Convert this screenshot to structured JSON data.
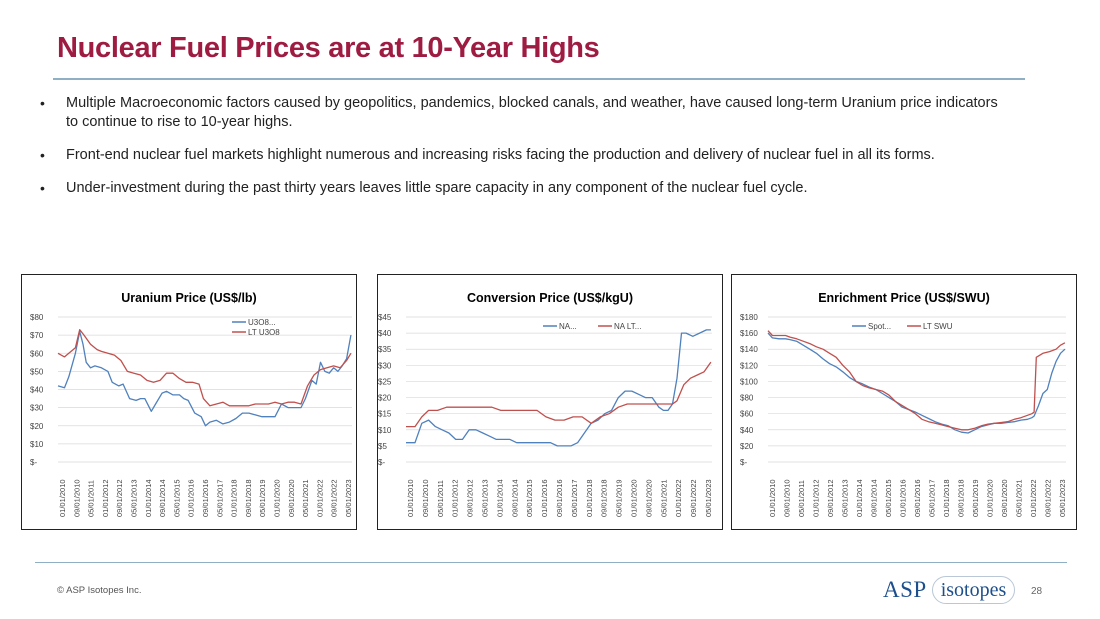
{
  "slide": {
    "title": "Nuclear Fuel Prices are at 10-Year Highs",
    "bullets": [
      "Multiple Macroeconomic factors caused by geopolitics, pandemics, blocked canals, and weather, have caused long-term Uranium price indicators to continue to rise to 10-year highs.",
      "Front-end nuclear fuel markets highlight numerous and increasing risks facing the production and delivery of nuclear fuel in all its forms.",
      "Under-investment during the past thirty years leaves little spare capacity in any component of the nuclear fuel cycle."
    ],
    "footer": {
      "copyright": "© ASP Isotopes Inc.",
      "logo_main": "ASP",
      "logo_sub": "isotopes",
      "page_number": "28"
    }
  },
  "colors": {
    "title": "#9e1b42",
    "series_blue": "#4f81bd",
    "series_red": "#c0504d"
  },
  "chart_data": [
    {
      "type": "line",
      "title": "Uranium Price (US$/lb)",
      "xlabel": "",
      "ylabel": "",
      "ylim": [
        0,
        80
      ],
      "yticks": [
        "$-",
        "$10",
        "$20",
        "$30",
        "$40",
        "$50",
        "$60",
        "$70",
        "$80"
      ],
      "xlim": [
        2010.0,
        2023.55
      ],
      "xticks": [
        "01/01/2010",
        "09/01/2010",
        "05/01/2011",
        "01/01/2012",
        "09/01/2012",
        "05/01/2013",
        "01/01/2014",
        "09/01/2014",
        "05/01/2015",
        "01/01/2016",
        "09/01/2016",
        "05/01/2017",
        "01/01/2018",
        "09/01/2018",
        "05/01/2019",
        "01/01/2020",
        "09/01/2020",
        "05/01/2021",
        "01/01/2022",
        "09/01/2022",
        "05/01/2023"
      ],
      "legend": "top-right",
      "series": [
        {
          "name": "U3O8...",
          "color": "#4f81bd",
          "x": [
            2010.0,
            2010.3,
            2010.5,
            2010.8,
            2011.0,
            2011.15,
            2011.3,
            2011.5,
            2011.7,
            2012.0,
            2012.3,
            2012.5,
            2012.8,
            2013.0,
            2013.3,
            2013.6,
            2013.8,
            2014.0,
            2014.3,
            2014.5,
            2014.8,
            2015.0,
            2015.3,
            2015.6,
            2015.8,
            2016.0,
            2016.3,
            2016.6,
            2016.8,
            2017.0,
            2017.3,
            2017.6,
            2017.9,
            2018.2,
            2018.5,
            2018.8,
            2019.1,
            2019.4,
            2019.7,
            2020.0,
            2020.3,
            2020.6,
            2020.9,
            2021.2,
            2021.4,
            2021.7,
            2021.9,
            2022.1,
            2022.3,
            2022.5,
            2022.7,
            2022.9,
            2023.1,
            2023.3,
            2023.5
          ],
          "y": [
            42,
            41,
            47,
            60,
            72,
            65,
            55,
            52,
            53,
            52,
            50,
            44,
            42,
            43,
            35,
            34,
            35,
            35,
            28,
            32,
            38,
            39,
            37,
            37,
            35,
            34,
            27,
            25,
            20,
            22,
            23,
            21,
            22,
            24,
            27,
            27,
            26,
            25,
            25,
            25,
            32,
            30,
            30,
            30,
            35,
            45,
            43,
            55,
            50,
            49,
            52,
            50,
            53,
            57,
            70
          ]
        },
        {
          "name": "LT U3O8",
          "color": "#c0504d",
          "x": [
            2010.0,
            2010.3,
            2010.5,
            2010.8,
            2011.0,
            2011.2,
            2011.5,
            2011.8,
            2012.0,
            2012.3,
            2012.6,
            2012.9,
            2013.2,
            2013.5,
            2013.8,
            2014.1,
            2014.4,
            2014.7,
            2015.0,
            2015.3,
            2015.6,
            2015.9,
            2016.2,
            2016.5,
            2016.7,
            2017.0,
            2017.3,
            2017.6,
            2017.9,
            2018.2,
            2018.5,
            2018.8,
            2019.1,
            2019.4,
            2019.7,
            2020.0,
            2020.3,
            2020.6,
            2020.9,
            2021.2,
            2021.5,
            2021.8,
            2022.1,
            2022.4,
            2022.7,
            2023.0,
            2023.3,
            2023.5
          ],
          "y": [
            60,
            58,
            60,
            63,
            73,
            70,
            65,
            62,
            61,
            60,
            59,
            56,
            50,
            49,
            48,
            45,
            44,
            45,
            49,
            49,
            46,
            44,
            44,
            43,
            35,
            31,
            32,
            33,
            31,
            31,
            31,
            31,
            32,
            32,
            32,
            33,
            32,
            33,
            33,
            32,
            42,
            48,
            51,
            52,
            53,
            52,
            56,
            60
          ]
        }
      ]
    },
    {
      "type": "line",
      "title": "Conversion Price (US$/kgU)",
      "xlabel": "",
      "ylabel": "",
      "ylim": [
        0,
        45
      ],
      "yticks": [
        "$-",
        "$5",
        "$10",
        "$15",
        "$20",
        "$25",
        "$30",
        "$35",
        "$40",
        "$45"
      ],
      "xlim": [
        2010.0,
        2023.55
      ],
      "xticks": [
        "01/01/2010",
        "09/01/2010",
        "05/01/2011",
        "01/01/2012",
        "09/01/2012",
        "05/01/2013",
        "01/01/2014",
        "09/01/2014",
        "05/01/2015",
        "01/01/2016",
        "09/01/2016",
        "05/01/2017",
        "01/01/2018",
        "09/01/2018",
        "05/01/2019",
        "01/01/2020",
        "09/01/2020",
        "05/01/2021",
        "01/01/2022",
        "09/01/2022",
        "05/01/2023"
      ],
      "legend": "top",
      "series": [
        {
          "name": "NA...",
          "color": "#4f81bd",
          "x": [
            2010.0,
            2010.4,
            2010.7,
            2011.0,
            2011.3,
            2011.6,
            2011.9,
            2012.2,
            2012.5,
            2012.8,
            2013.1,
            2013.4,
            2013.7,
            2014.0,
            2014.3,
            2014.6,
            2014.9,
            2015.2,
            2015.5,
            2015.8,
            2016.1,
            2016.4,
            2016.7,
            2017.0,
            2017.3,
            2017.6,
            2017.9,
            2018.2,
            2018.5,
            2018.8,
            2019.1,
            2019.4,
            2019.7,
            2020.0,
            2020.3,
            2020.6,
            2020.9,
            2021.2,
            2021.4,
            2021.6,
            2021.8,
            2022.0,
            2022.2,
            2022.4,
            2022.7,
            2023.0,
            2023.3,
            2023.5
          ],
          "y": [
            6,
            6,
            12,
            13,
            11,
            10,
            9,
            7,
            7,
            10,
            10,
            9,
            8,
            7,
            7,
            7,
            6,
            6,
            6,
            6,
            6,
            6,
            5,
            5,
            5,
            6,
            9,
            12,
            13,
            15,
            16,
            20,
            22,
            22,
            21,
            20,
            20,
            17,
            16,
            16,
            18,
            26,
            40,
            40,
            39,
            40,
            41,
            41
          ]
        },
        {
          "name": "NA LT...",
          "color": "#c0504d",
          "x": [
            2010.0,
            2010.4,
            2010.7,
            2011.0,
            2011.4,
            2011.8,
            2012.2,
            2012.6,
            2013.0,
            2013.4,
            2013.8,
            2014.2,
            2014.6,
            2015.0,
            2015.4,
            2015.8,
            2016.2,
            2016.6,
            2017.0,
            2017.4,
            2017.8,
            2018.2,
            2018.6,
            2019.0,
            2019.4,
            2019.8,
            2020.2,
            2020.6,
            2021.0,
            2021.4,
            2021.6,
            2021.8,
            2022.0,
            2022.3,
            2022.6,
            2022.9,
            2023.2,
            2023.5
          ],
          "y": [
            11,
            11,
            14,
            16,
            16,
            17,
            17,
            17,
            17,
            17,
            17,
            16,
            16,
            16,
            16,
            16,
            14,
            13,
            13,
            14,
            14,
            12,
            14,
            15,
            17,
            18,
            18,
            18,
            18,
            18,
            18,
            18,
            19,
            24,
            26,
            27,
            28,
            31
          ]
        }
      ]
    },
    {
      "type": "line",
      "title": "Enrichment Price (US$/SWU)",
      "xlabel": "",
      "ylabel": "",
      "ylim": [
        0,
        180
      ],
      "yticks": [
        "$-",
        "$20",
        "$40",
        "$60",
        "$80",
        "$100",
        "$120",
        "$140",
        "$160",
        "$180"
      ],
      "xlim": [
        2010.0,
        2023.55
      ],
      "xticks": [
        "01/01/2010",
        "09/01/2010",
        "05/01/2011",
        "01/01/2012",
        "09/01/2012",
        "05/01/2013",
        "01/01/2014",
        "09/01/2014",
        "05/01/2015",
        "01/01/2016",
        "09/01/2016",
        "05/01/2017",
        "01/01/2018",
        "09/01/2018",
        "05/01/2019",
        "01/01/2020",
        "09/01/2020",
        "05/01/2021",
        "01/01/2022",
        "09/01/2022",
        "05/01/2023"
      ],
      "legend": "top",
      "series": [
        {
          "name": "Spot...",
          "color": "#4f81bd",
          "x": [
            2010.0,
            2010.2,
            2010.5,
            2010.8,
            2011.0,
            2011.3,
            2011.6,
            2011.9,
            2012.2,
            2012.5,
            2012.8,
            2013.1,
            2013.4,
            2013.7,
            2014.0,
            2014.3,
            2014.6,
            2014.9,
            2015.2,
            2015.5,
            2015.8,
            2016.1,
            2016.4,
            2016.7,
            2017.0,
            2017.3,
            2017.6,
            2017.9,
            2018.2,
            2018.5,
            2018.8,
            2019.1,
            2019.4,
            2019.7,
            2020.0,
            2020.3,
            2020.6,
            2020.9,
            2021.2,
            2021.5,
            2021.8,
            2022.0,
            2022.1,
            2022.3,
            2022.5,
            2022.7,
            2022.9,
            2023.1,
            2023.3,
            2023.5
          ],
          "y": [
            160,
            154,
            153,
            153,
            152,
            150,
            145,
            140,
            135,
            128,
            122,
            118,
            112,
            105,
            100,
            97,
            93,
            90,
            85,
            80,
            75,
            68,
            65,
            62,
            58,
            54,
            50,
            47,
            45,
            40,
            37,
            36,
            40,
            44,
            46,
            48,
            48,
            49,
            50,
            52,
            53,
            55,
            57,
            70,
            85,
            90,
            110,
            125,
            135,
            140
          ]
        },
        {
          "name": "LT SWU",
          "color": "#c0504d",
          "x": [
            2010.0,
            2010.2,
            2010.5,
            2010.8,
            2011.0,
            2011.3,
            2011.6,
            2011.9,
            2012.2,
            2012.5,
            2012.8,
            2013.1,
            2013.4,
            2013.7,
            2014.0,
            2014.3,
            2014.6,
            2014.9,
            2015.2,
            2015.5,
            2015.8,
            2016.1,
            2016.4,
            2016.7,
            2017.0,
            2017.3,
            2017.6,
            2017.9,
            2018.2,
            2018.5,
            2018.8,
            2019.1,
            2019.4,
            2019.7,
            2020.0,
            2020.3,
            2020.6,
            2020.9,
            2021.2,
            2021.5,
            2021.8,
            2022.0,
            2022.1,
            2022.2,
            2022.5,
            2022.8,
            2023.1,
            2023.3,
            2023.5
          ],
          "y": [
            163,
            157,
            157,
            157,
            155,
            153,
            150,
            147,
            143,
            140,
            135,
            130,
            120,
            112,
            100,
            95,
            92,
            90,
            88,
            83,
            75,
            70,
            65,
            60,
            53,
            50,
            48,
            46,
            44,
            42,
            40,
            40,
            42,
            45,
            47,
            48,
            49,
            50,
            53,
            55,
            58,
            60,
            62,
            130,
            135,
            137,
            140,
            145,
            148
          ]
        }
      ]
    }
  ]
}
